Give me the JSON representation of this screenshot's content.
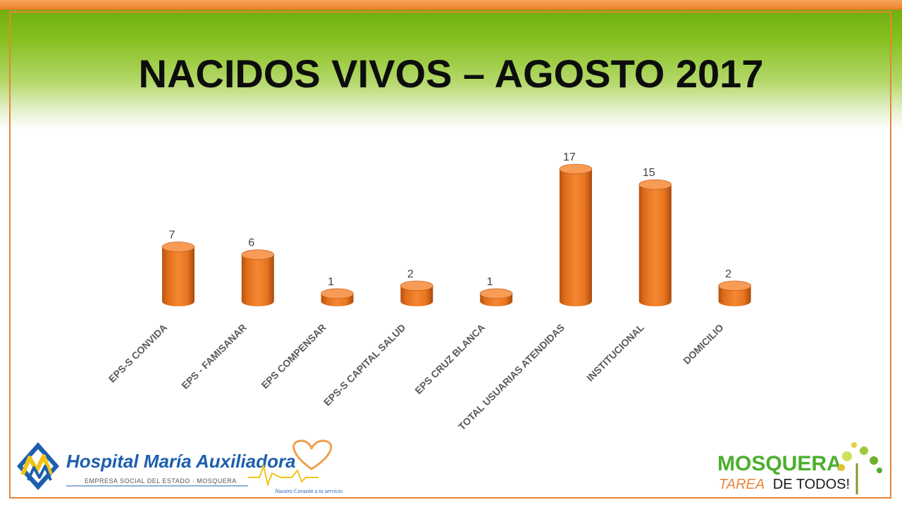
{
  "page": {
    "title": "NACIDOS VIVOS – AGOSTO 2017"
  },
  "chart_data": {
    "type": "bar",
    "title": "",
    "categories": [
      "EPS-S CONVIDA",
      "EPS - FAMISANAR",
      "EPS COMPENSAR",
      "EPS-S CAPITAL SALUD",
      "EPS CRUZ BLANCA",
      "TOTAL USUARIAS ATENDIDAS",
      "INSTITUCIONAL",
      "DOMICILIO"
    ],
    "values": [
      7,
      6,
      1,
      2,
      1,
      17,
      15,
      2
    ],
    "ylim": [
      0,
      17
    ],
    "grid": false,
    "data_labels": true,
    "bar_color": "#f07d23",
    "bar_shade": "#b8520e",
    "bar_top": "#f79b55"
  },
  "logos": {
    "hospital_name": "Hospital María Auxiliadora",
    "hospital_sub": "EMPRESA SOCIAL DEL ESTADO · MOSQUERA",
    "hospital_slogan": "Nuestro Corazón a tu servicio",
    "city_name": "MOSQUERA",
    "city_slogan_a": "TAREA",
    "city_slogan_b": "DE TODOS!"
  },
  "colors": {
    "accent_orange": "#e9843a",
    "header_green": "#6fb00e",
    "hospital_blue": "#1d5fae",
    "city_green": "#4caf2d"
  }
}
